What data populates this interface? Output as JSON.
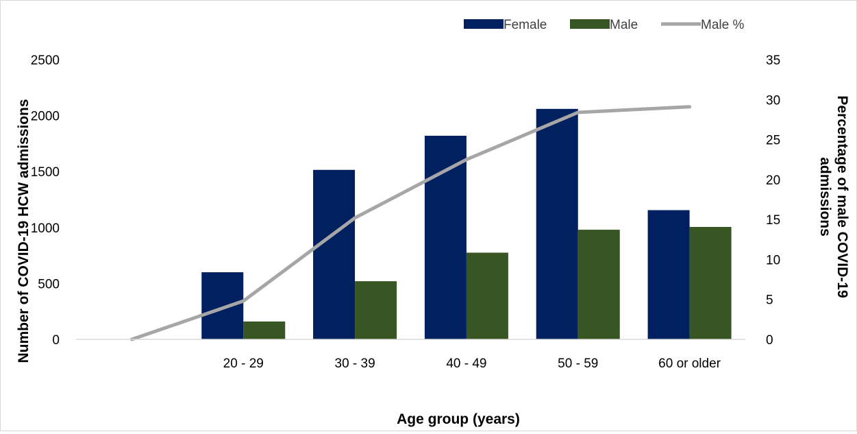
{
  "chart_data": {
    "type": "bar",
    "categories": [
      "",
      "20 - 29",
      "30 - 39",
      "40 - 49",
      "50 - 59",
      "60 or older"
    ],
    "series": [
      {
        "name": "Female",
        "type": "bar",
        "axis": "left",
        "color": "#002060",
        "values": [
          null,
          600,
          1515,
          1820,
          2060,
          1155
        ]
      },
      {
        "name": "Male",
        "type": "bar",
        "axis": "left",
        "color": "#375623",
        "values": [
          null,
          160,
          520,
          775,
          980,
          1005
        ]
      },
      {
        "name": "Male %",
        "type": "line",
        "axis": "right",
        "color": "#a6a6a6",
        "values": [
          0,
          4.8,
          15.2,
          22.5,
          28.4,
          29.1
        ]
      }
    ],
    "title": "",
    "xlabel": "Age group (years)",
    "ylabel": "Number of COVID-19 HCW admissions",
    "y2label_line1": "Percentage of male COVID-19",
    "y2label_line2": "admissions",
    "ylim": [
      0,
      2500
    ],
    "y2lim": [
      0,
      35
    ],
    "yticks": [
      "0",
      "500",
      "1000",
      "1500",
      "2000",
      "2500"
    ],
    "y2ticks": [
      "0",
      "5",
      "10",
      "15",
      "20",
      "25",
      "30",
      "35"
    ],
    "grid": false,
    "legend": "top-right"
  }
}
